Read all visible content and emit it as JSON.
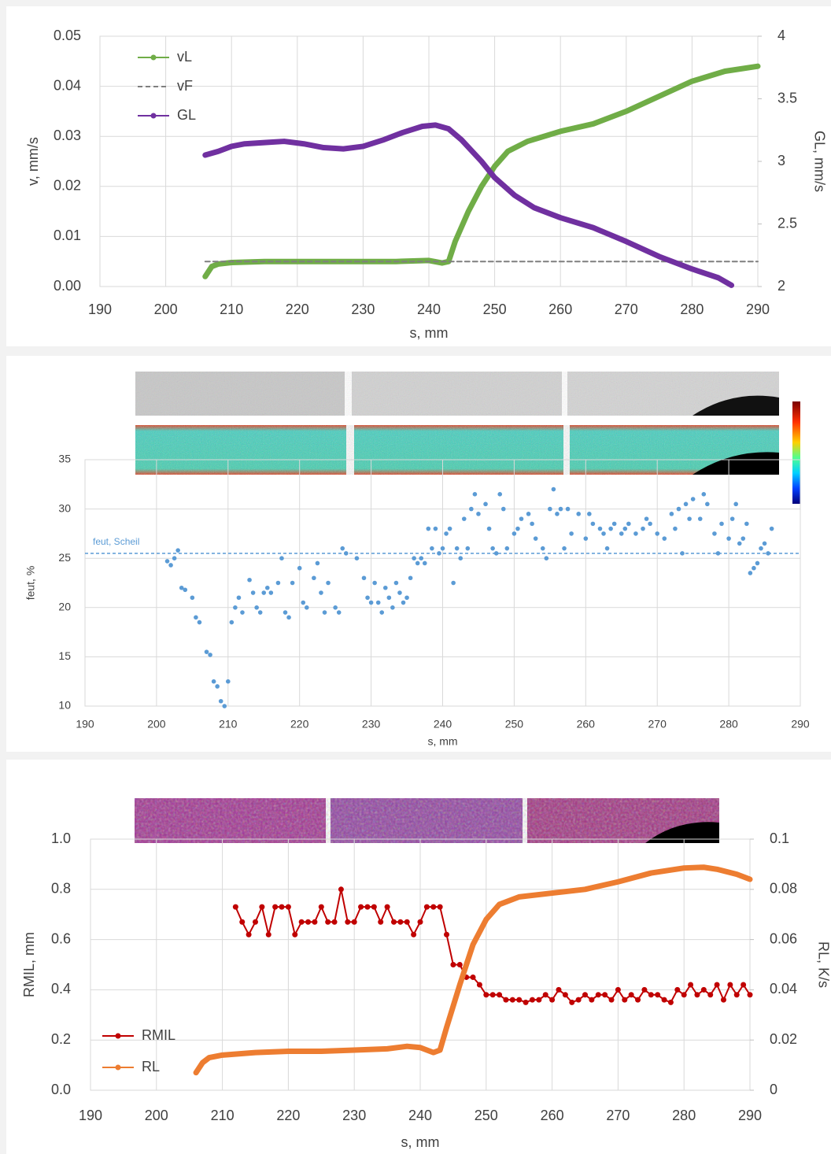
{
  "chart_data": [
    {
      "type": "line",
      "xlabel": "s, mm",
      "ylabel": "v, mm/s",
      "y2label": "GL, mm/s",
      "xlim": [
        190,
        290
      ],
      "xticks": [
        190,
        200,
        210,
        220,
        230,
        240,
        250,
        260,
        270,
        280,
        290
      ],
      "ylim": [
        0,
        0.05
      ],
      "yticks": [
        {
          "value": 0,
          "label": "0.00"
        },
        0.01,
        0.02,
        0.03,
        0.04,
        0.05
      ],
      "y2lim": [
        2,
        4
      ],
      "y2ticks": [
        2,
        2.5,
        3,
        3.5,
        4
      ],
      "grid": true,
      "legend": "upper left",
      "series": [
        {
          "name": "vL",
          "color": "#70ad47",
          "x": [
            206,
            207,
            208,
            210,
            215,
            220,
            225,
            230,
            235,
            240,
            242,
            243,
            244,
            246,
            248,
            250,
            252,
            255,
            260,
            265,
            270,
            275,
            280,
            285,
            290
          ],
          "values": [
            0.002,
            0.004,
            0.0045,
            0.0048,
            0.005,
            0.005,
            0.005,
            0.005,
            0.005,
            0.0052,
            0.0047,
            0.005,
            0.009,
            0.015,
            0.02,
            0.024,
            0.027,
            0.029,
            0.031,
            0.0325,
            0.035,
            0.038,
            0.041,
            0.043,
            0.044
          ]
        },
        {
          "name": "vF",
          "color": "#7f7f7f",
          "linestyle": "dashed",
          "x": [
            206,
            290
          ],
          "values": [
            0.005,
            0.005
          ]
        },
        {
          "name": "GL",
          "color": "#7030a0",
          "axis": "y2",
          "x": [
            206,
            208,
            210,
            212,
            215,
            218,
            221,
            224,
            227,
            230,
            233,
            236,
            239,
            241,
            243,
            245,
            248,
            250,
            253,
            256,
            260,
            265,
            270,
            275,
            280,
            284,
            286
          ],
          "values": [
            3.05,
            3.08,
            3.12,
            3.14,
            3.15,
            3.16,
            3.14,
            3.11,
            3.1,
            3.12,
            3.17,
            3.23,
            3.28,
            3.29,
            3.26,
            3.17,
            3.0,
            2.87,
            2.73,
            2.63,
            2.55,
            2.47,
            2.36,
            2.24,
            2.14,
            2.07,
            2.01
          ]
        }
      ]
    },
    {
      "type": "scatter",
      "xlabel": "s, mm",
      "ylabel": "feut, %",
      "color": "#5b9bd5",
      "xlim": [
        190,
        290
      ],
      "xticks": [
        190,
        200,
        210,
        220,
        230,
        240,
        250,
        260,
        270,
        280,
        290
      ],
      "ylim": [
        10,
        35
      ],
      "yticks": [
        10,
        15,
        20,
        25,
        30,
        35
      ],
      "grid": true,
      "annotations": [
        {
          "text": "feut, Scheil",
          "y": 25.5
        }
      ],
      "x": [
        201.5,
        202,
        202.5,
        203,
        203.5,
        204,
        205,
        205.5,
        206,
        207,
        207.5,
        208,
        208.5,
        209,
        209.5,
        210,
        210.5,
        211,
        211.5,
        212,
        213,
        213.5,
        214,
        214.5,
        215,
        215.5,
        216,
        217,
        217.5,
        218,
        218.5,
        219,
        220,
        220.5,
        221,
        222,
        222.5,
        223,
        223.5,
        224,
        225,
        225.5,
        226,
        226.5,
        228,
        229,
        229.5,
        230,
        230.5,
        231,
        231.5,
        232,
        232.5,
        233,
        233.5,
        234,
        234.5,
        235,
        235.5,
        236,
        236.5,
        237,
        237.5,
        238,
        238.5,
        239,
        239.5,
        240,
        240.5,
        241,
        241.5,
        242,
        242.5,
        243,
        243.5,
        244,
        244.5,
        245,
        246,
        246.5,
        247,
        247.5,
        248,
        248.5,
        249,
        250,
        250.5,
        251,
        252,
        252.5,
        253,
        254,
        254.5,
        255,
        255.5,
        256,
        256.5,
        257,
        257.5,
        258,
        259,
        260,
        260.5,
        261,
        262,
        262.5,
        263,
        263.5,
        264,
        265,
        265.5,
        266,
        267,
        268,
        268.5,
        269,
        270,
        271,
        272,
        272.5,
        273,
        273.5,
        274,
        274.5,
        275,
        276,
        276.5,
        277,
        278,
        278.5,
        279,
        280,
        280.5,
        281,
        281.5,
        282,
        282.5,
        283,
        283.5,
        284,
        284.5,
        285,
        285.5,
        286
      ],
      "values": [
        24.7,
        24.3,
        25,
        25.8,
        22,
        21.8,
        21,
        19,
        18.5,
        15.5,
        15.2,
        12.5,
        12,
        10.5,
        10,
        12.5,
        18.5,
        20,
        21,
        19.5,
        22.8,
        21.5,
        20,
        19.5,
        21.5,
        22,
        21.5,
        22.5,
        25,
        19.5,
        19,
        22.5,
        24,
        20.5,
        20,
        23,
        24.5,
        21.5,
        19.5,
        22.5,
        20,
        19.5,
        26,
        25.5,
        25,
        23,
        21,
        20.5,
        22.5,
        20.5,
        19.5,
        22,
        21,
        20,
        22.5,
        21.5,
        20.5,
        21,
        23,
        25,
        24.5,
        25,
        24.5,
        28,
        26,
        28,
        25.5,
        26,
        27.5,
        28,
        22.5,
        26,
        25,
        29,
        26,
        30,
        31.5,
        29.5,
        30.5,
        28,
        26,
        25.5,
        31.5,
        30,
        26,
        27.5,
        28,
        29,
        29.5,
        28.5,
        27,
        26,
        25,
        30,
        32,
        29.5,
        30,
        26,
        30,
        27.5,
        29.5,
        27,
        29.5,
        28.5,
        28,
        27.5,
        26,
        28,
        28.5,
        27.5,
        28,
        28.5,
        27.5,
        28,
        29,
        28.5,
        27.5,
        27,
        29.5,
        28,
        30,
        25.5,
        30.5,
        29,
        31,
        29,
        31.5,
        30.5,
        27.5,
        25.5,
        28.5,
        27,
        29,
        30.5,
        26.5,
        27,
        28.5,
        23.5,
        24,
        24.5,
        26,
        26.5,
        25.5,
        28
      ]
    },
    {
      "type": "line",
      "xlabel": "s, mm",
      "ylabel": "RMIL, mm",
      "y2label": "RL, K/s",
      "xlim": [
        190,
        290
      ],
      "xticks": [
        190,
        200,
        210,
        220,
        230,
        240,
        250,
        260,
        270,
        280,
        290
      ],
      "ylim": [
        0,
        1
      ],
      "yticks": [
        {
          "value": 0,
          "label": "0.0"
        },
        0.2,
        0.4,
        0.6,
        0.8,
        {
          "value": 1,
          "label": "1.0"
        }
      ],
      "y2lim": [
        0,
        0.1
      ],
      "y2ticks": [
        0,
        0.02,
        0.04,
        0.06,
        0.08,
        0.1
      ],
      "grid": true,
      "legend": "lower left",
      "series": [
        {
          "name": "RMIL",
          "color": "#c00000",
          "marker": true,
          "x": [
            212,
            213,
            214,
            215,
            216,
            217,
            218,
            219,
            220,
            221,
            222,
            223,
            224,
            225,
            226,
            227,
            228,
            229,
            230,
            231,
            232,
            233,
            234,
            235,
            236,
            237,
            238,
            239,
            240,
            241,
            242,
            243,
            244,
            245,
            246,
            247,
            248,
            249,
            250,
            251,
            252,
            253,
            254,
            255,
            256,
            257,
            258,
            259,
            260,
            261,
            262,
            263,
            264,
            265,
            266,
            267,
            268,
            269,
            270,
            271,
            272,
            273,
            274,
            275,
            276,
            277,
            278,
            279,
            280,
            281,
            282,
            283,
            284,
            285,
            286,
            287,
            288,
            289,
            290
          ],
          "values": [
            0.73,
            0.67,
            0.62,
            0.67,
            0.73,
            0.62,
            0.73,
            0.73,
            0.73,
            0.62,
            0.67,
            0.67,
            0.67,
            0.73,
            0.67,
            0.67,
            0.8,
            0.67,
            0.67,
            0.73,
            0.73,
            0.73,
            0.67,
            0.73,
            0.67,
            0.67,
            0.67,
            0.62,
            0.67,
            0.73,
            0.73,
            0.73,
            0.62,
            0.5,
            0.5,
            0.45,
            0.45,
            0.42,
            0.38,
            0.38,
            0.38,
            0.36,
            0.36,
            0.36,
            0.35,
            0.36,
            0.36,
            0.38,
            0.36,
            0.4,
            0.38,
            0.35,
            0.36,
            0.38,
            0.36,
            0.38,
            0.38,
            0.36,
            0.4,
            0.36,
            0.38,
            0.36,
            0.4,
            0.38,
            0.38,
            0.36,
            0.35,
            0.4,
            0.38,
            0.42,
            0.38,
            0.4,
            0.38,
            0.42,
            0.36,
            0.42,
            0.38,
            0.42,
            0.38
          ]
        },
        {
          "name": "RL",
          "color": "#ed7d31",
          "axis": "y2",
          "x": [
            206,
            207,
            208,
            210,
            215,
            220,
            225,
            230,
            235,
            238,
            240,
            242,
            243,
            244,
            246,
            248,
            250,
            252,
            255,
            260,
            265,
            270,
            275,
            280,
            283,
            285,
            288,
            290
          ],
          "values": [
            0.007,
            0.011,
            0.013,
            0.014,
            0.015,
            0.0155,
            0.0155,
            0.016,
            0.0165,
            0.0175,
            0.017,
            0.015,
            0.016,
            0.025,
            0.042,
            0.058,
            0.068,
            0.074,
            0.077,
            0.0785,
            0.08,
            0.083,
            0.0865,
            0.0885,
            0.0888,
            0.088,
            0.086,
            0.084
          ]
        }
      ]
    }
  ]
}
